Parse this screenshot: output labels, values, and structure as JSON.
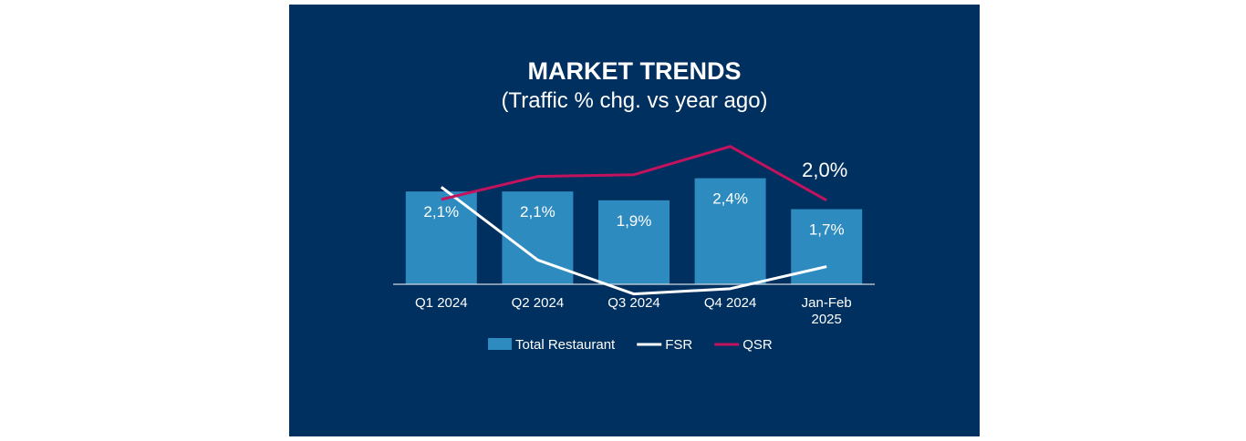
{
  "chart_data": {
    "type": "bar",
    "title": "MARKET TRENDS",
    "subtitle": "(Traffic % chg. vs year ago)",
    "categories": [
      [
        "Q1 2024"
      ],
      [
        "Q2 2024"
      ],
      [
        "Q3 2024"
      ],
      [
        "Q4 2024"
      ],
      [
        "Jan-Feb",
        "2025"
      ]
    ],
    "series": [
      {
        "name": "Total Restaurant",
        "kind": "bar",
        "color": "#2e8bc0",
        "values": [
          2.1,
          2.1,
          1.9,
          2.4,
          1.7
        ],
        "labels": [
          "2,1%",
          "2,1%",
          "1,9%",
          "2,4%",
          "1,7%"
        ]
      },
      {
        "name": "FSR",
        "kind": "line",
        "color": "#ffffff",
        "values": [
          2.2,
          0.55,
          -0.22,
          -0.1,
          0.4
        ]
      },
      {
        "name": "QSR",
        "kind": "line",
        "color": "#c4135e",
        "values": [
          1.92,
          2.44,
          2.48,
          3.12,
          1.9
        ],
        "labels": [
          "",
          "",
          "",
          "",
          "2,0%"
        ]
      }
    ],
    "ylim": [
      -0.4,
      3.6
    ],
    "grid": false,
    "legend": "bottom"
  }
}
